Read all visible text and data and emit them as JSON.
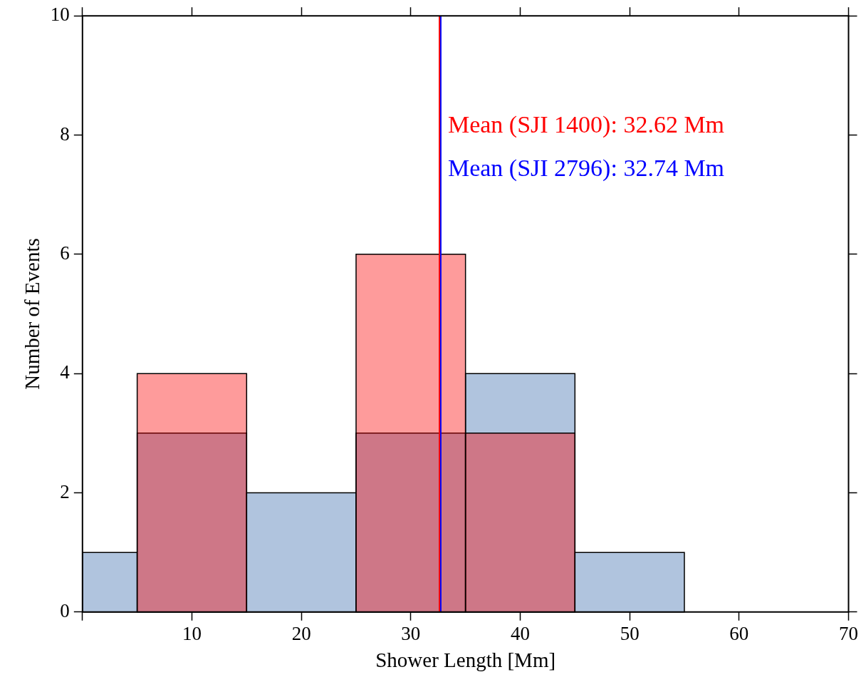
{
  "chart_data": {
    "type": "histogram",
    "xlabel": "Shower Length [Mm]",
    "ylabel": "Number of Events",
    "bins": [
      0,
      5,
      15,
      25,
      35,
      45,
      55
    ],
    "series": [
      {
        "color": "#b0c4de",
        "values": [
          1,
          3,
          2,
          3,
          4,
          1
        ]
      },
      {
        "color": "#fe9b9b",
        "values": [
          0,
          4,
          0,
          6,
          3,
          0
        ]
      }
    ],
    "xlim": [
      0,
      70
    ],
    "xticks": [
      {
        "value": 0,
        "label": null
      },
      10,
      20,
      30,
      40,
      50,
      60,
      70
    ],
    "ylim": [
      0,
      10
    ],
    "yticks": [
      0,
      2,
      4,
      6,
      8,
      10
    ],
    "grid": false,
    "legend": false,
    "ref_lines": [
      {
        "axis": "x",
        "value": 32.62,
        "label": "Mean (SJI 1400): 32.62 Mm",
        "color": "#ff0000"
      },
      {
        "axis": "x",
        "value": 32.74,
        "label": "Mean (SJI 2796): 32.74 Mm",
        "color": "#0000ff"
      }
    ]
  }
}
